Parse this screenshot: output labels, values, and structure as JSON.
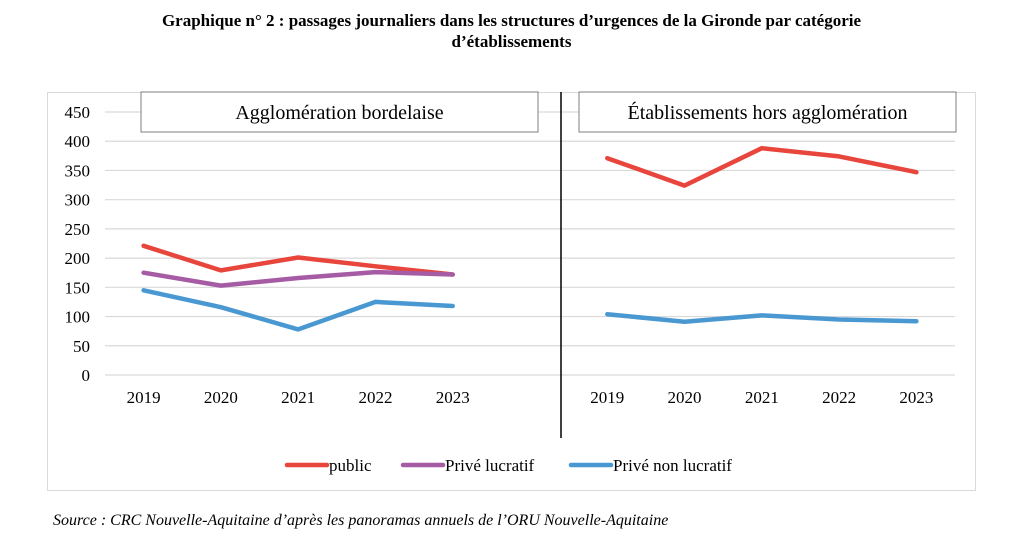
{
  "title_line1": "Graphique n° 2 :  passages journaliers dans les structures d’urgences de la Gironde par catégorie",
  "title_line2": "d’établissements",
  "source": "Source : CRC Nouvelle-Aquitaine d’après les panoramas annuels de l’ORU Nouvelle-Aquitaine",
  "chart_data": {
    "type": "line",
    "title": "passages journaliers dans les structures d’urgences de la Gironde par catégorie d’établissements",
    "xlabel": "",
    "ylabel": "",
    "ylim": [
      0,
      450
    ],
    "yticks": [
      0,
      50,
      100,
      150,
      200,
      250,
      300,
      350,
      400,
      450
    ],
    "grid": true,
    "legend_position": "bottom",
    "panels": [
      {
        "label": "Agglomération bordelaise",
        "categories": [
          "2019",
          "2020",
          "2021",
          "2022",
          "2023"
        ],
        "series": [
          {
            "name": "public",
            "color": "#e8453c",
            "values": [
              221,
              179,
              201,
              186,
              172
            ]
          },
          {
            "name": "Privé lucratif",
            "color": "#a65ca5",
            "values": [
              175,
              153,
              166,
              176,
              172
            ]
          },
          {
            "name": "Privé non lucratif",
            "color": "#4a98d2",
            "values": [
              145,
              116,
              78,
              125,
              118
            ]
          }
        ]
      },
      {
        "label": "Établissements hors agglomération",
        "categories": [
          "2019",
          "2020",
          "2021",
          "2022",
          "2023"
        ],
        "series": [
          {
            "name": "public",
            "color": "#e8453c",
            "values": [
              371,
              324,
              388,
              374,
              347
            ]
          },
          {
            "name": "Privé non lucratif",
            "color": "#4a98d2",
            "values": [
              104,
              91,
              102,
              95,
              92
            ]
          }
        ]
      }
    ],
    "legend": [
      {
        "name": "public",
        "color": "#e8453c"
      },
      {
        "name": "Privé lucratif",
        "color": "#a65ca5"
      },
      {
        "name": "Privé non lucratif",
        "color": "#4a98d2"
      }
    ]
  }
}
